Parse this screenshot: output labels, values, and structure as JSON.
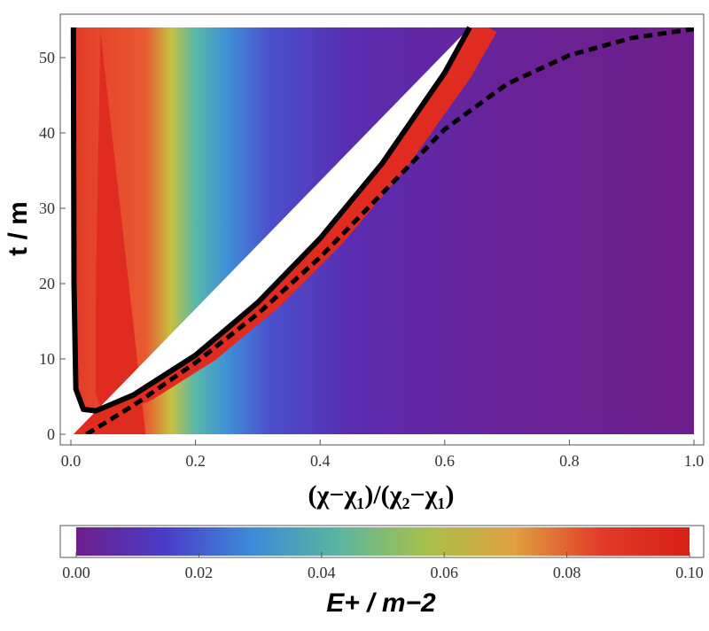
{
  "chart_data": {
    "type": "heatmap",
    "title": "",
    "xlabel": "(χ−χ₁)/(χ₂−χ₁)",
    "ylabel": "t / m",
    "xlim": [
      0.0,
      1.0
    ],
    "ylim": [
      0,
      54
    ],
    "x_ticks": [
      "0.0",
      "0.2",
      "0.4",
      "0.6",
      "0.8",
      "1.0"
    ],
    "y_ticks": [
      "0",
      "10",
      "20",
      "30",
      "40",
      "50"
    ],
    "colorbar": {
      "label": "E+ / m−2",
      "range": [
        0.0,
        0.1
      ],
      "ticks": [
        "0.00",
        "0.02",
        "0.04",
        "0.06",
        "0.08",
        "0.10"
      ],
      "colors": [
        "#6e1e8a",
        "#4a3cc8",
        "#3d8ad8",
        "#5bb5a0",
        "#a8c04a",
        "#e0a040",
        "#e23a28",
        "#d82018"
      ]
    },
    "solid_boundary": {
      "style": "solid",
      "color": "#000000",
      "points": [
        [
          0.004,
          54
        ],
        [
          0.005,
          20
        ],
        [
          0.008,
          6
        ],
        [
          0.02,
          3.3
        ],
        [
          0.04,
          3.1
        ],
        [
          0.1,
          5.2
        ],
        [
          0.2,
          10.5
        ],
        [
          0.3,
          17.5
        ],
        [
          0.4,
          26
        ],
        [
          0.5,
          36
        ],
        [
          0.6,
          48
        ],
        [
          0.64,
          54
        ]
      ]
    },
    "dashed_curve": {
      "style": "dashed",
      "color": "#000000",
      "points": [
        [
          0.025,
          0
        ],
        [
          0.1,
          3.8
        ],
        [
          0.2,
          9.5
        ],
        [
          0.3,
          16
        ],
        [
          0.4,
          23.5
        ],
        [
          0.5,
          32
        ],
        [
          0.6,
          40.5
        ],
        [
          0.7,
          46.5
        ],
        [
          0.8,
          50.3
        ],
        [
          0.9,
          52.6
        ],
        [
          1.0,
          53.8
        ]
      ]
    }
  }
}
